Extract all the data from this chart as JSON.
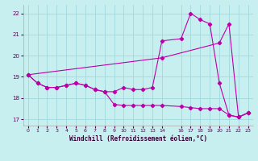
{
  "xlabel": "Windchill (Refroidissement éolien,°C)",
  "bg_color": "#c8eff0",
  "line_color": "#bb00aa",
  "grid_color": "#a0d8dc",
  "xlim": [
    -0.5,
    23.5
  ],
  "ylim": [
    16.7,
    22.4
  ],
  "yticks": [
    17,
    18,
    19,
    20,
    21,
    22
  ],
  "xticks": [
    0,
    1,
    2,
    3,
    4,
    5,
    6,
    7,
    8,
    9,
    10,
    11,
    12,
    13,
    14,
    16,
    17,
    18,
    19,
    20,
    21,
    22,
    23
  ],
  "xtick_labels": [
    "0",
    "1",
    "2",
    "3",
    "4",
    "5",
    "6",
    "7",
    "8",
    "9",
    "10",
    "11",
    "12",
    "13",
    "14",
    "16",
    "17",
    "18",
    "19",
    "20",
    "21",
    "22",
    "23"
  ],
  "line1_x": [
    0,
    1,
    2,
    3,
    4,
    5,
    6,
    7,
    8,
    9,
    10,
    11,
    12,
    13,
    14,
    16,
    17,
    18,
    19,
    20,
    21,
    22,
    23
  ],
  "line1_y": [
    19.1,
    18.7,
    18.5,
    18.5,
    18.6,
    18.7,
    18.6,
    18.4,
    18.3,
    18.3,
    18.5,
    18.4,
    18.4,
    18.5,
    20.7,
    20.8,
    22.0,
    21.7,
    21.5,
    18.7,
    17.2,
    17.1,
    17.3
  ],
  "line2_x": [
    0,
    1,
    2,
    3,
    4,
    5,
    6,
    7,
    8,
    9,
    10,
    11,
    12,
    13,
    14,
    16,
    17,
    18,
    19,
    20,
    21,
    22,
    23
  ],
  "line2_y": [
    19.1,
    18.7,
    18.5,
    18.5,
    18.6,
    18.7,
    18.6,
    18.4,
    18.3,
    17.7,
    17.65,
    17.65,
    17.65,
    17.65,
    17.65,
    17.6,
    17.55,
    17.5,
    17.5,
    17.5,
    17.2,
    17.1,
    17.3
  ],
  "line3_x": [
    0,
    14,
    20,
    21,
    22,
    23
  ],
  "line3_y": [
    19.1,
    19.9,
    20.6,
    21.5,
    17.1,
    17.3
  ]
}
